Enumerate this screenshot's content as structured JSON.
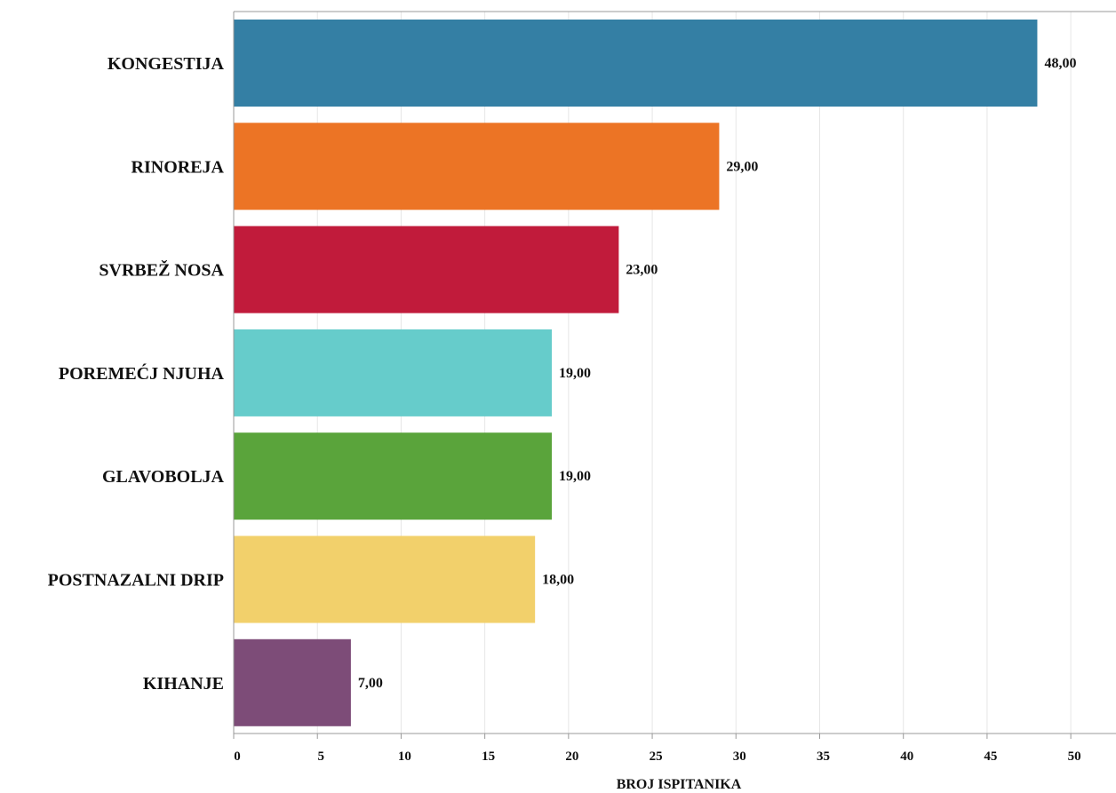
{
  "chart_data": {
    "type": "bar",
    "orientation": "horizontal",
    "categories": [
      "KONGESTIJA",
      "RINOREJA",
      "SVRBEŽ NOSA",
      "POREMEĆJ NJUHA",
      "GLAVOBOLJA",
      "POSTNAZALNI DRIP",
      "KIHANJE"
    ],
    "values": [
      48,
      29,
      23,
      19,
      19,
      18,
      7
    ],
    "value_labels": [
      "48,00",
      "29,00",
      "23,00",
      "19,00",
      "19,00",
      "18,00",
      "7,00"
    ],
    "colors": [
      "#347fa4",
      "#ec7425",
      "#c11b3b",
      "#66cccb",
      "#5aa43b",
      "#f2d06b",
      "#7d4c78"
    ],
    "xlabel": "BROJ ISPITANIKA",
    "ylabel": "",
    "xlim": [
      0,
      52.7
    ],
    "xticks": [
      0,
      5,
      10,
      15,
      20,
      25,
      30,
      35,
      40,
      45,
      50
    ],
    "grid": true,
    "legend": "none"
  }
}
